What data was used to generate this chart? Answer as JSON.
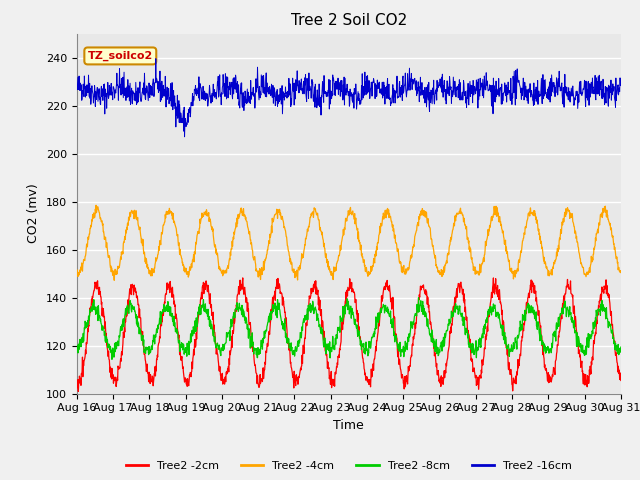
{
  "title": "Tree 2 Soil CO2",
  "xlabel": "Time",
  "ylabel": "CO2 (mv)",
  "ylim": [
    100,
    250
  ],
  "yticks": [
    100,
    120,
    140,
    160,
    180,
    200,
    220,
    240
  ],
  "xtick_labels": [
    "Aug 16",
    "Aug 17",
    "Aug 18",
    "Aug 19",
    "Aug 20",
    "Aug 21",
    "Aug 22",
    "Aug 23",
    "Aug 24",
    "Aug 25",
    "Aug 26",
    "Aug 27",
    "Aug 28",
    "Aug 29",
    "Aug 30",
    "Aug 31"
  ],
  "annotation_text": "TZ_soilco2",
  "annotation_bg": "#ffffcc",
  "annotation_border": "#cc8800",
  "annotation_text_color": "#cc0000",
  "bg_color": "#e8e8e8",
  "grid_color": "#ffffff",
  "colors": {
    "2cm": "#ff0000",
    "4cm": "#ffa500",
    "8cm": "#00cc00",
    "16cm": "#0000cc"
  },
  "legend_labels": [
    "Tree2 -2cm",
    "Tree2 -4cm",
    "Tree2 -8cm",
    "Tree2 -16cm"
  ],
  "title_fontsize": 11,
  "label_fontsize": 9,
  "tick_fontsize": 8
}
